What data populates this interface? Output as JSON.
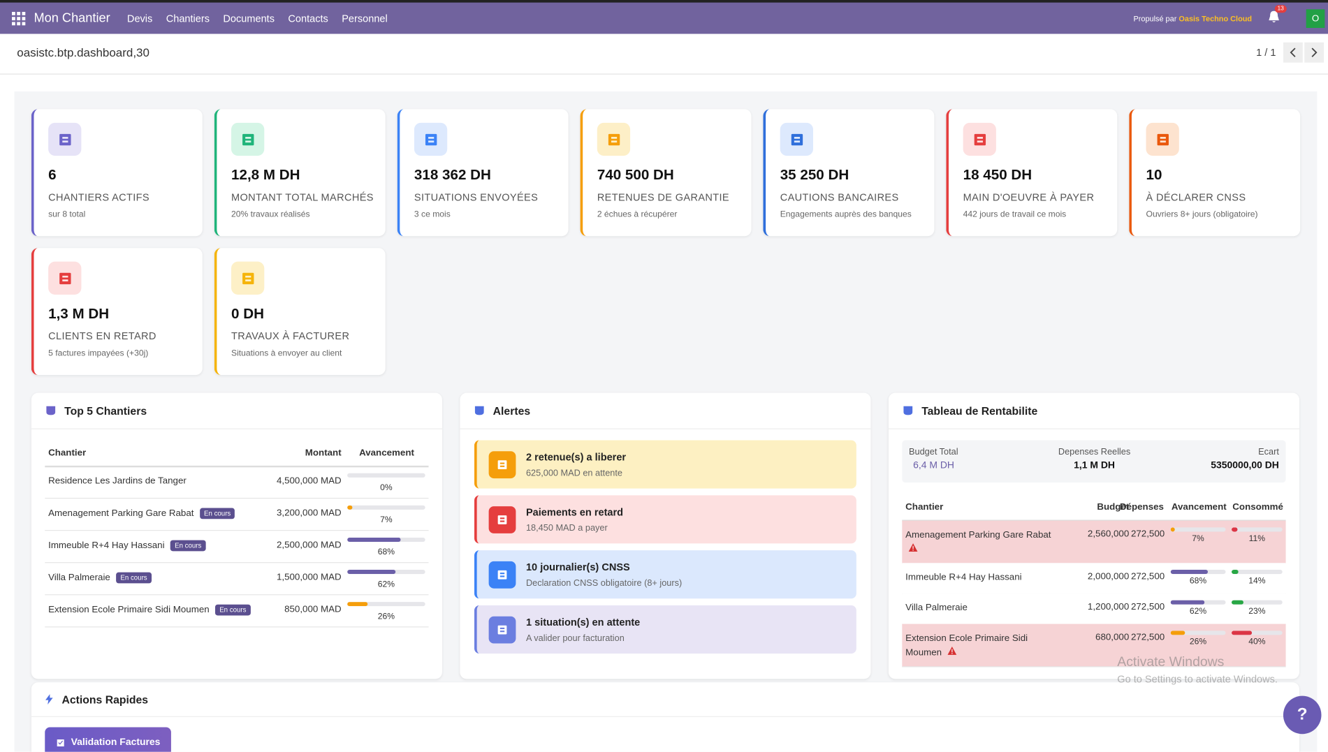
{
  "navbar": {
    "app": "Mon Chantier",
    "menu": [
      "Devis",
      "Chantiers",
      "Documents",
      "Contacts",
      "Personnel"
    ],
    "powered_prefix": "Propulsé par",
    "powered_brand": "Oasis Techno Cloud",
    "notifications": "13",
    "avatar": "O"
  },
  "breadcrumb": {
    "record": "oasistc.btp.dashboard,30",
    "pager": "1 / 1"
  },
  "kpis": [
    {
      "value": "6",
      "label": "CHANTIERS ACTIFS",
      "sub": "sur 8 total",
      "color": "#6b63c9",
      "tint": "#e6e3f7"
    },
    {
      "value": "12,8 M DH",
      "label": "MONTANT TOTAL MARCHÉS",
      "sub": "20% travaux réalisés",
      "color": "#1fb47a",
      "tint": "#d5f5e6"
    },
    {
      "value": "318 362 DH",
      "label": "SITUATIONS ENVOYÉES",
      "sub": "3 ce mois",
      "color": "#3b82f6",
      "tint": "#dde9fd"
    },
    {
      "value": "740 500 DH",
      "label": "RETENUES DE GARANTIE",
      "sub": "2 échues à récupérer",
      "color": "#f59e0b",
      "tint": "#fdefc7"
    },
    {
      "value": "35 250 DH",
      "label": "CAUTIONS BANCAIRES",
      "sub": "Engagements auprès des banques",
      "color": "#2f6fdb",
      "tint": "#dde9fd"
    },
    {
      "value": "18 450 DH",
      "label": "MAIN D'OEUVRE À PAYER",
      "sub": "442 jours de travail ce mois",
      "color": "#e53e3e",
      "tint": "#fde0e0"
    },
    {
      "value": "10",
      "label": "À DÉCLARER CNSS",
      "sub": "Ouvriers 8+ jours (obligatoire)",
      "color": "#ea580c",
      "tint": "#fde3cf"
    },
    {
      "value": "1,3 M DH",
      "label": "CLIENTS EN RETARD",
      "sub": "5 factures impayées (+30j)",
      "color": "#e53e3e",
      "tint": "#fde0e0"
    },
    {
      "value": "0 DH",
      "label": "TRAVAUX À FACTURER",
      "sub": "Situations à envoyer au client",
      "color": "#f5b40b",
      "tint": "#fdf0c7"
    }
  ],
  "top5": {
    "title": "Top 5 Chantiers",
    "headers": [
      "Chantier",
      "Montant",
      "Avancement"
    ],
    "rows": [
      {
        "name": "Residence Les Jardins de Tanger",
        "badge": null,
        "amount": "4,500,000 MAD",
        "progress": 0,
        "progress_label": "0%"
      },
      {
        "name": "Amenagement Parking Gare Rabat",
        "badge": "En cours",
        "amount": "3,200,000 MAD",
        "progress": 7,
        "progress_label": "7%"
      },
      {
        "name": "Immeuble R+4 Hay Hassani",
        "badge": "En cours",
        "amount": "2,500,000 MAD",
        "progress": 68,
        "progress_label": "68%"
      },
      {
        "name": "Villa Palmeraie",
        "badge": "En cours",
        "amount": "1,500,000 MAD",
        "progress": 62,
        "progress_label": "62%"
      },
      {
        "name": "Extension Ecole Primaire Sidi Moumen",
        "badge": "En cours",
        "amount": "850,000 MAD",
        "progress": 26,
        "progress_label": "26%"
      }
    ]
  },
  "alerts": {
    "title": "Alertes",
    "items": [
      {
        "title": "2 retenue(s) a liberer",
        "sub": "625,000 MAD en attente",
        "color": "#f59e0b",
        "background": "#fdf0c2"
      },
      {
        "title": "Paiements en retard",
        "sub": "18,450 MAD a payer",
        "color": "#e53e3e",
        "background": "#fde0e0"
      },
      {
        "title": "10 journalier(s) CNSS",
        "sub": "Declaration CNSS obligatoire (8+ jours)",
        "color": "#3b82f6",
        "background": "#dbe8fd"
      },
      {
        "title": "1 situation(s) en attente",
        "sub": "A valider pour facturation",
        "color": "#6b7ee0",
        "background": "#e8e4f5"
      }
    ]
  },
  "rentabilite": {
    "title": "Tableau de Rentabilite",
    "summary": [
      {
        "label": "Budget Total",
        "value": "6,4 M DH"
      },
      {
        "label": "Depenses Reelles",
        "value": "1,1 M DH"
      },
      {
        "label": "Ecart",
        "value": "5350000,00 DH"
      }
    ],
    "headers": [
      "Chantier",
      "Budget",
      "Dépenses",
      "Avancement",
      "Consommé"
    ],
    "rows": [
      {
        "name": "Amenagement Parking Gare Rabat",
        "budget": "2,560,000",
        "depenses": "272,500",
        "avancement": 7,
        "avancement_label": "7%",
        "consomme": 11,
        "consomme_label": "11%",
        "warning": true
      },
      {
        "name": "Immeuble R+4 Hay Hassani",
        "budget": "2,000,000",
        "depenses": "272,500",
        "avancement": 68,
        "avancement_label": "68%",
        "consomme": 14,
        "consomme_label": "14%",
        "warning": false
      },
      {
        "name": "Villa Palmeraie",
        "budget": "1,200,000",
        "depenses": "272,500",
        "avancement": 62,
        "avancement_label": "62%",
        "consomme": 23,
        "consomme_label": "23%",
        "warning": false
      },
      {
        "name": "Extension Ecole Primaire Sidi Moumen",
        "budget": "680,000",
        "depenses": "272,500",
        "avancement": 26,
        "avancement_label": "26%",
        "consomme": 40,
        "consomme_label": "40%",
        "warning": true
      }
    ]
  },
  "actions": {
    "title": "Actions Rapides",
    "buttons": [
      "Validation Factures"
    ]
  },
  "watermark": {
    "title": "Activate Windows",
    "sub": "Go to Settings to activate Windows."
  },
  "help": "?"
}
